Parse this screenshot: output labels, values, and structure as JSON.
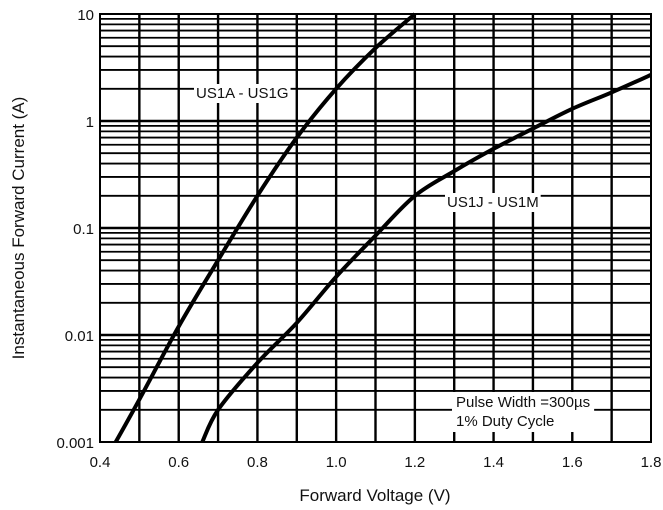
{
  "chart_data": {
    "type": "line",
    "title": "",
    "xlabel": "Forward Voltage (V)",
    "ylabel": "Instantaneous Forward Current (A)",
    "xlim": [
      0.4,
      1.8
    ],
    "ylim": [
      0.001,
      10
    ],
    "yscale": "log",
    "grid": true,
    "x_ticks": [
      "0.4",
      "0.6",
      "0.8",
      "1.0",
      "1.2",
      "1.4",
      "1.6",
      "1.8"
    ],
    "y_ticks": [
      "0.001",
      "0.01",
      "0.1",
      "1",
      "10"
    ],
    "series": [
      {
        "name": "US1A - US1G",
        "points": [
          [
            0.44,
            0.001
          ],
          [
            0.5,
            0.0025
          ],
          [
            0.6,
            0.012
          ],
          [
            0.7,
            0.05
          ],
          [
            0.8,
            0.2
          ],
          [
            0.9,
            0.7
          ],
          [
            1.0,
            2.0
          ],
          [
            1.1,
            4.8
          ],
          [
            1.2,
            10
          ]
        ]
      },
      {
        "name": "US1J - US1M",
        "points": [
          [
            0.66,
            0.001
          ],
          [
            0.7,
            0.002
          ],
          [
            0.8,
            0.0055
          ],
          [
            0.9,
            0.013
          ],
          [
            1.0,
            0.035
          ],
          [
            1.1,
            0.085
          ],
          [
            1.2,
            0.2
          ],
          [
            1.3,
            0.34
          ],
          [
            1.4,
            0.55
          ],
          [
            1.5,
            0.85
          ],
          [
            1.6,
            1.3
          ],
          [
            1.7,
            1.85
          ],
          [
            1.8,
            2.7
          ]
        ]
      }
    ],
    "annotations": [
      "Pulse Width =300µs",
      "1% Duty Cycle"
    ]
  }
}
